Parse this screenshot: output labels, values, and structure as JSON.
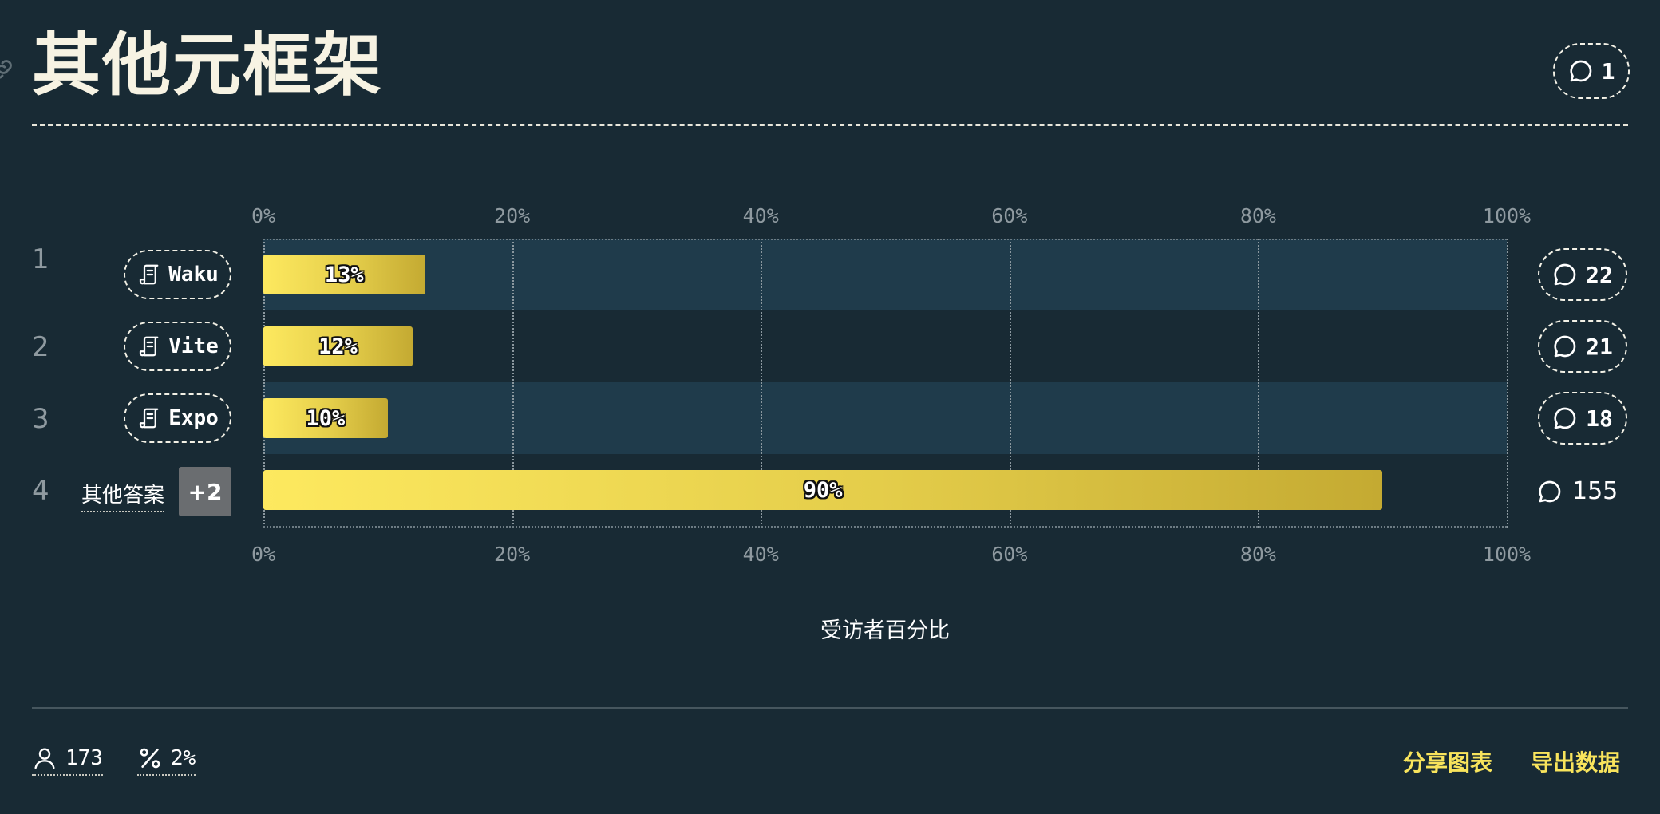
{
  "header": {
    "title": "其他元框架",
    "comments_count": "1"
  },
  "chart_data": {
    "type": "bar",
    "orientation": "horizontal",
    "categories": [
      "Waku",
      "Vite",
      "Expo",
      "其他答案"
    ],
    "values": [
      13,
      12,
      10,
      90
    ],
    "value_labels": [
      "13%",
      "12%",
      "10%",
      "90%"
    ],
    "xlabel": "受访者百分比",
    "xlim": [
      0,
      100
    ],
    "x_ticks": [
      "0%",
      "20%",
      "40%",
      "60%",
      "80%",
      "100%"
    ],
    "grid": true
  },
  "rows": [
    {
      "rank": "1",
      "label": "Waku",
      "comments": "22"
    },
    {
      "rank": "2",
      "label": "Vite",
      "comments": "21"
    },
    {
      "rank": "3",
      "label": "Expo",
      "comments": "18"
    },
    {
      "rank": "4",
      "label": "其他答案",
      "extra": "+2",
      "comments": "155"
    }
  ],
  "footer": {
    "respondents": "173",
    "percent": "2%",
    "share_label": "分享图表",
    "export_label": "导出数据"
  },
  "colors": {
    "background": "#182a34",
    "band": "#1f3b4b",
    "bar_start": "#fde95f",
    "bar_end": "#c4aa32",
    "accent": "#f8e45c"
  },
  "icons": {
    "row_tag": "scroll-icon",
    "comments": "speech-bubble-icon",
    "respondents": "user-icon",
    "percent": "percent-icon",
    "anchor": "link-icon"
  }
}
